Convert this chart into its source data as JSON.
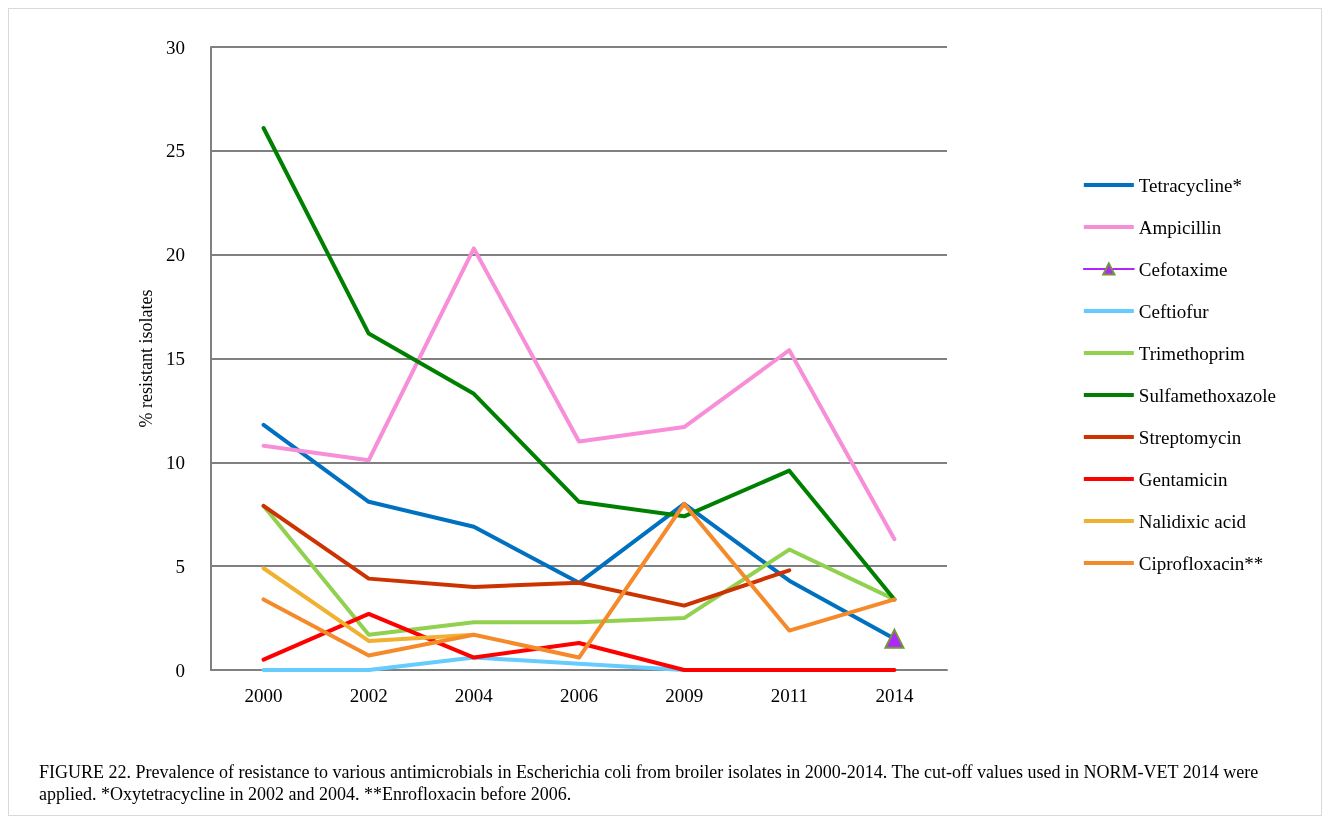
{
  "chart_data": {
    "type": "line",
    "ylabel": "% resistant isolates",
    "categories": [
      "2000",
      "2002",
      "2004",
      "2006",
      "2009",
      "2011",
      "2014"
    ],
    "ylim": [
      0,
      30
    ],
    "yticks": [
      0,
      5,
      10,
      15,
      20,
      25,
      30
    ],
    "grid": "y",
    "legend": "right",
    "marker": "none",
    "line_style": "solid",
    "series": [
      {
        "name": "Tetracycline*",
        "color": "#0070c0",
        "values": [
          11.8,
          8.1,
          6.9,
          4.2,
          8.0,
          4.3,
          1.5
        ]
      },
      {
        "name": "Ampicillin",
        "color": "#f78fd8",
        "values": [
          10.8,
          10.1,
          20.3,
          11.0,
          11.7,
          15.4,
          6.3
        ]
      },
      {
        "name": "Cefotaxime",
        "color": "#b026ff",
        "marker": "triangle",
        "values": [
          null,
          null,
          null,
          null,
          null,
          null,
          1.5
        ]
      },
      {
        "name": "Ceftiofur",
        "color": "#66ccff",
        "values": [
          0,
          0,
          0.6,
          0.3,
          0,
          null,
          null
        ]
      },
      {
        "name": "Trimethoprim",
        "color": "#92d050",
        "values": [
          7.9,
          1.7,
          2.3,
          2.3,
          2.5,
          5.8,
          3.4
        ]
      },
      {
        "name": "Sulfamethoxazole",
        "color": "#008000",
        "values": [
          26.1,
          16.2,
          13.3,
          8.1,
          7.4,
          9.6,
          3.4
        ]
      },
      {
        "name": "Streptomycin",
        "color": "#cc3300",
        "values": [
          7.9,
          4.4,
          4.0,
          4.2,
          3.1,
          4.8,
          null
        ]
      },
      {
        "name": "Gentamicin",
        "color": "#ff0000",
        "values": [
          0.5,
          2.7,
          0.6,
          1.3,
          0,
          0,
          0
        ]
      },
      {
        "name": "Nalidixic acid",
        "color": "#f0b030",
        "values": [
          4.9,
          1.4,
          1.7,
          null,
          null,
          null,
          null
        ]
      },
      {
        "name": "Ciprofloxacin**",
        "color": "#f58a2a",
        "values": [
          3.4,
          0.7,
          1.7,
          0.6,
          8.0,
          1.9,
          3.4
        ]
      }
    ],
    "annotations": [
      "FIGURE 22. Prevalence of resistance to various antimicrobials in Escherichia coli from broiler isolates in 2000-2014. The cut-off values used in NORM-VET 2014 were applied. *Oxytetracycline in 2002 and 2004. **Enrofloxacin before 2006."
    ]
  }
}
